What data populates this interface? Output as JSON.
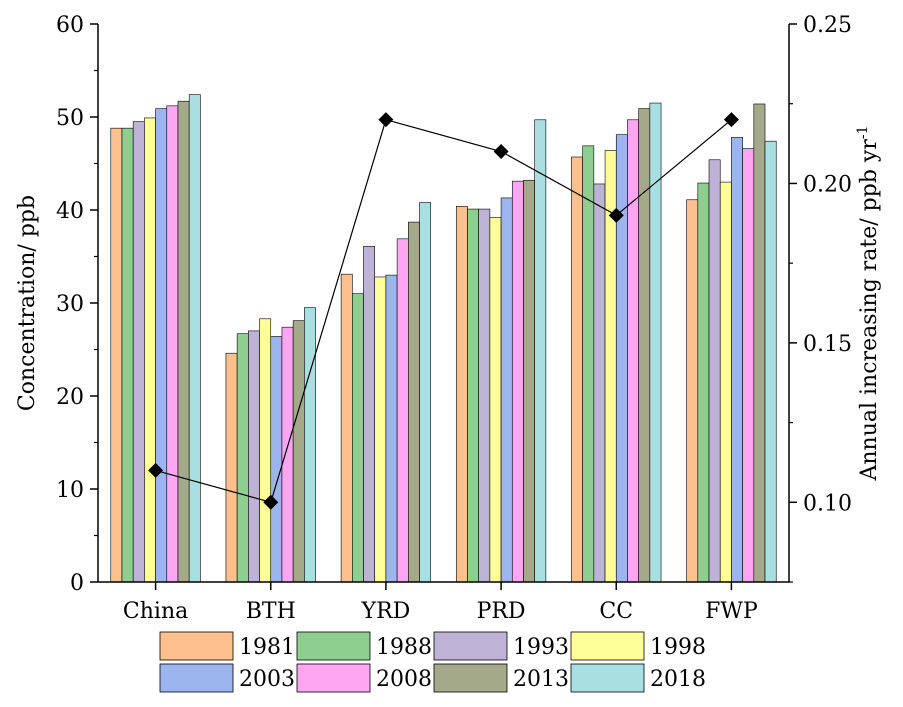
{
  "chart_data": {
    "type": "bar",
    "title": "",
    "categories": [
      "China",
      "BTH",
      "YRD",
      "PRD",
      "CC",
      "FWP"
    ],
    "ylabel": "Concentration/ ppb",
    "ylim": [
      0,
      60
    ],
    "yticks": [
      0,
      10,
      20,
      30,
      40,
      50,
      60
    ],
    "y2label": "Annual increasing rate/ ppb yr",
    "y2label_sup": "-1",
    "y2lim": [
      0.075,
      0.25
    ],
    "y2ticks": [
      "0.10",
      "0.15",
      "0.20",
      "0.25"
    ],
    "grid": false,
    "legend_position": "bottom",
    "series": [
      {
        "name": "1981",
        "color": "#FDC08E",
        "values": [
          48.8,
          24.6,
          33.1,
          40.4,
          45.7,
          41.1
        ]
      },
      {
        "name": "1988",
        "color": "#8ECF90",
        "values": [
          48.8,
          26.7,
          31.0,
          40.1,
          46.9,
          42.9
        ]
      },
      {
        "name": "1993",
        "color": "#BDB3D6",
        "values": [
          49.5,
          27.0,
          36.1,
          40.1,
          42.8,
          45.4
        ]
      },
      {
        "name": "1998",
        "color": "#FFFF99",
        "values": [
          49.9,
          28.3,
          32.8,
          39.2,
          46.4,
          43.0
        ]
      },
      {
        "name": "2003",
        "color": "#9DB5EE",
        "values": [
          50.9,
          26.4,
          33.0,
          41.3,
          48.1,
          47.8
        ]
      },
      {
        "name": "2008",
        "color": "#FFA6F2",
        "values": [
          51.2,
          27.4,
          36.9,
          43.1,
          49.7,
          46.6
        ]
      },
      {
        "name": "2013",
        "color": "#A4A98A",
        "values": [
          51.7,
          28.1,
          38.7,
          43.2,
          50.9,
          51.4
        ]
      },
      {
        "name": "2018",
        "color": "#A8E0E2",
        "values": [
          52.4,
          29.5,
          40.8,
          49.7,
          51.5,
          47.4
        ]
      }
    ],
    "rate_series": {
      "axis": "right",
      "color": "#000000",
      "values": [
        0.11,
        0.1,
        0.22,
        0.21,
        0.19,
        0.22
      ]
    }
  }
}
